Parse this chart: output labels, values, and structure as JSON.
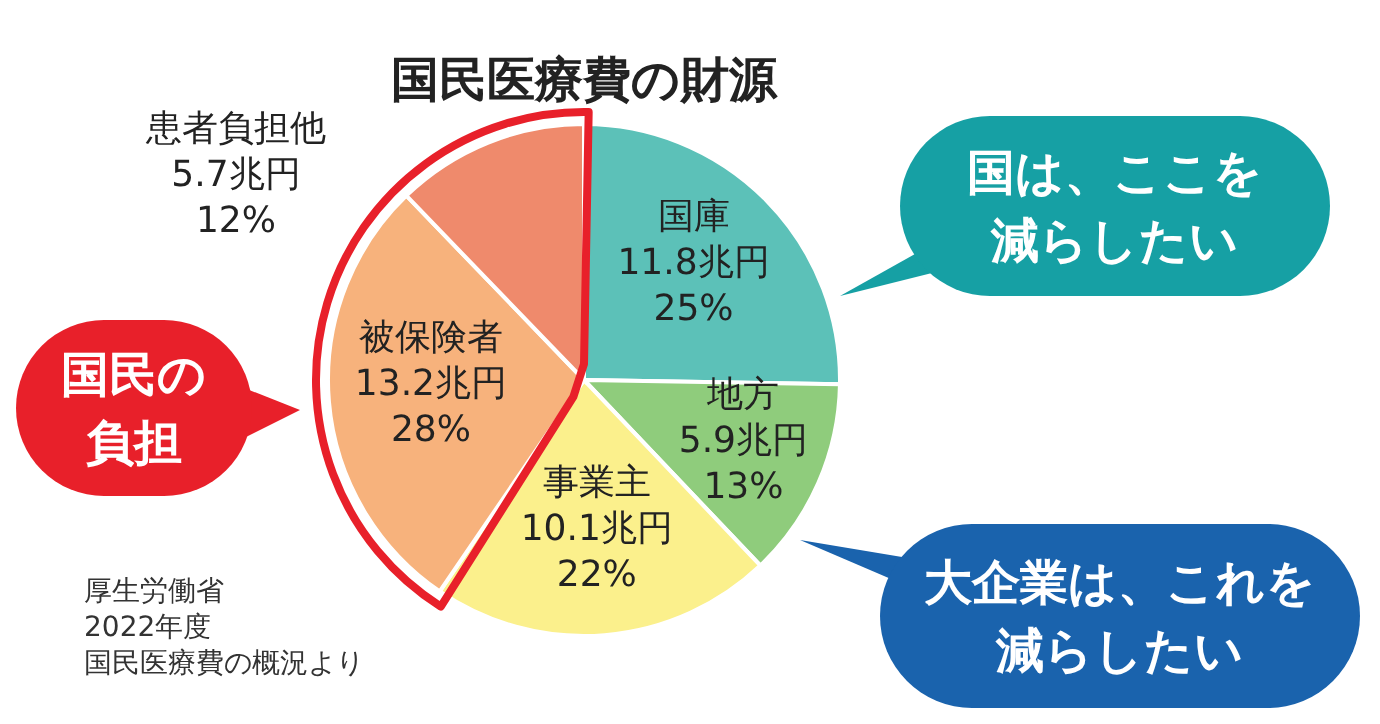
{
  "chart_data": {
    "type": "pie",
    "title": "国民医療費の財源",
    "categories": [
      "国庫",
      "地方",
      "事業主",
      "被保険者",
      "患者負担他"
    ],
    "values": [
      11.8,
      5.9,
      10.1,
      13.2,
      5.7
    ],
    "value_labels": [
      "11.8兆円\n25%",
      "5.9兆円\n13%",
      "10.1兆円\n22%",
      "13.2兆円\n28%",
      "5.7兆円\n12%"
    ],
    "colors": [
      "#5cc1b8",
      "#8fcc7c",
      "#fbf08c",
      "#f7b27c",
      "#ef8a6c"
    ],
    "annotations": [
      "国は、ここを",
      "減らしたい",
      "国民の",
      "負担",
      "大企業は、これを",
      "減らしたい",
      "厚生労働省",
      "2022年度",
      "国民医療費の概況より"
    ]
  }
}
